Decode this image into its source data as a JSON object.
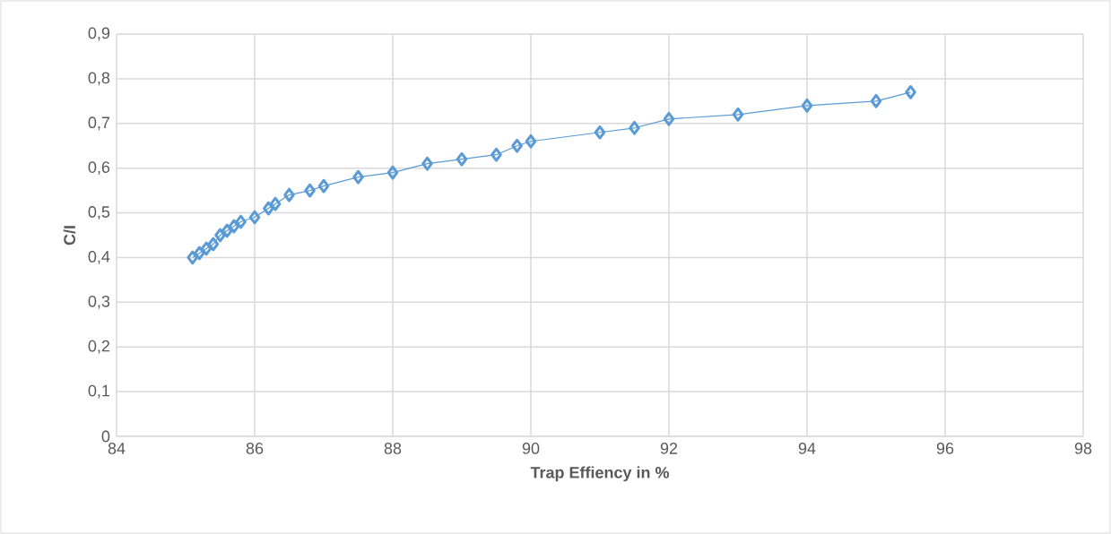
{
  "chart_data": {
    "type": "line",
    "xlabel": "Trap Effiency in %",
    "ylabel": "C/I",
    "x": [
      85.1,
      85.2,
      85.3,
      85.4,
      85.5,
      85.6,
      85.7,
      85.8,
      86.0,
      86.2,
      86.3,
      86.5,
      86.8,
      87.0,
      87.5,
      88.0,
      88.5,
      89.0,
      89.5,
      89.8,
      90.0,
      91.0,
      91.5,
      92.0,
      93.0,
      94.0,
      95.0,
      95.5
    ],
    "series": [
      {
        "color": "#5b9bd5",
        "values": [
          0.4,
          0.41,
          0.42,
          0.43,
          0.45,
          0.46,
          0.47,
          0.48,
          0.49,
          0.51,
          0.52,
          0.54,
          0.55,
          0.56,
          0.58,
          0.59,
          0.61,
          0.62,
          0.63,
          0.65,
          0.66,
          0.68,
          0.69,
          0.71,
          0.72,
          0.74,
          0.75,
          0.77
        ]
      }
    ],
    "xlim": [
      84,
      98
    ],
    "xticks": [
      84,
      86,
      88,
      90,
      92,
      94,
      96,
      98
    ],
    "ylim": [
      0,
      0.9
    ],
    "yticks": [
      0,
      {
        "value": 0.1,
        "label": "0,1"
      },
      {
        "value": 0.2,
        "label": "0,2"
      },
      {
        "value": 0.3,
        "label": "0,3"
      },
      {
        "value": 0.4,
        "label": "0,4"
      },
      {
        "value": 0.5,
        "label": "0,5"
      },
      {
        "value": 0.6,
        "label": "0,6"
      },
      {
        "value": 0.7,
        "label": "0,7"
      },
      {
        "value": 0.8,
        "label": "0,8"
      },
      {
        "value": 0.9,
        "label": "0,9"
      }
    ],
    "grid": true,
    "marker": "diamond",
    "line_style": "solid"
  }
}
